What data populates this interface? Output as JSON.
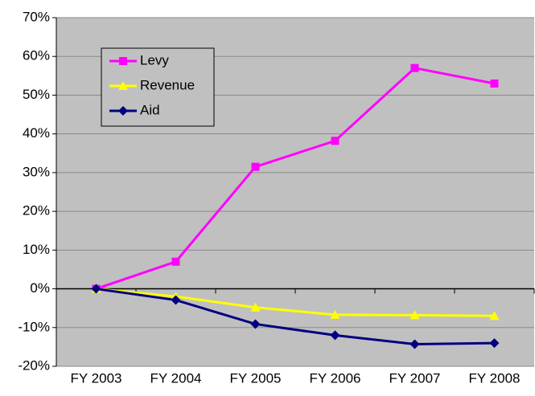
{
  "chart_data": {
    "type": "line",
    "categories": [
      "FY 2003",
      "FY 2004",
      "FY 2005",
      "FY 2006",
      "FY 2007",
      "FY 2008"
    ],
    "series": [
      {
        "name": "Levy",
        "color": "#ff00ff",
        "marker": "square",
        "values": [
          0,
          7,
          31.5,
          38.2,
          57,
          53
        ]
      },
      {
        "name": "Revenue",
        "color": "#ffff00",
        "marker": "triangle",
        "values": [
          0,
          -2,
          -4.8,
          -6.7,
          -6.8,
          -7
        ]
      },
      {
        "name": "Aid",
        "color": "#000080",
        "marker": "diamond",
        "values": [
          0,
          -2.9,
          -9.1,
          -12,
          -14.3,
          -14
        ]
      }
    ],
    "ylim": [
      -20,
      70
    ],
    "yticks": [
      {
        "value": -20,
        "label": "-20%"
      },
      {
        "value": -10,
        "label": "-10%"
      },
      {
        "value": 0,
        "label": "0%"
      },
      {
        "value": 10,
        "label": "10%"
      },
      {
        "value": 20,
        "label": "20%"
      },
      {
        "value": 30,
        "label": "30%"
      },
      {
        "value": 40,
        "label": "40%"
      },
      {
        "value": 50,
        "label": "50%"
      },
      {
        "value": 60,
        "label": "60%"
      },
      {
        "value": 70,
        "label": "70%"
      }
    ],
    "grid": true,
    "legend": "upper left",
    "background": "#c0c0c0"
  }
}
